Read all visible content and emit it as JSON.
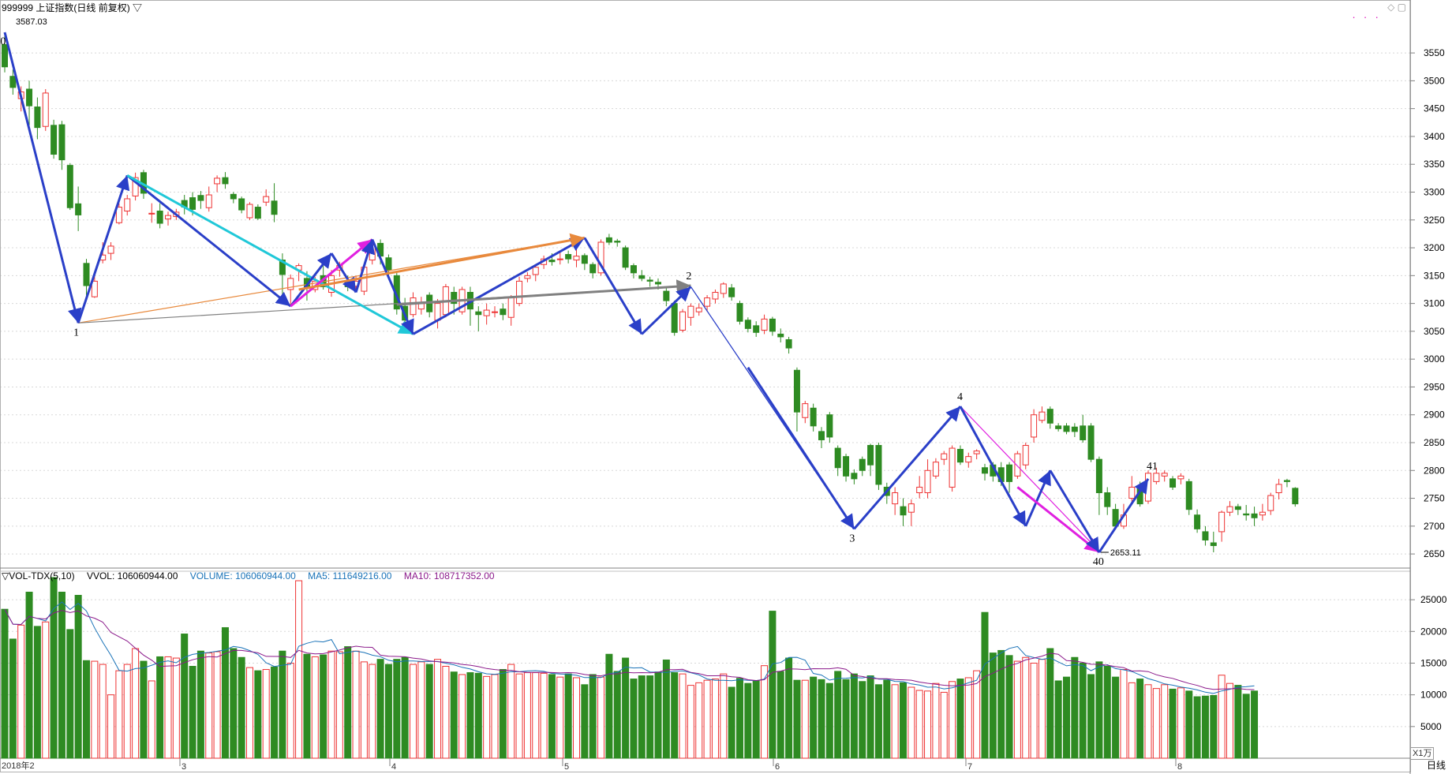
{
  "window": {
    "title": "999999 上证指数(日线 前复权) ▽",
    "icons": "◇ ▢",
    "dots": "· · ·",
    "period_label": "日线",
    "unit_label": "X1万",
    "start_label": "2018年2"
  },
  "chart_data": [
    {
      "type": "candlestick",
      "title": "999999 上证指数(日线 前复权)",
      "ylim": [
        2625,
        3590
      ],
      "yticks": [
        2650,
        2700,
        2750,
        2800,
        2850,
        2900,
        2950,
        3000,
        3050,
        3100,
        3150,
        3200,
        3250,
        3300,
        3350,
        3400,
        3450,
        3500,
        3550
      ],
      "month_labels": [
        "3",
        "4",
        "5",
        "6",
        "7",
        "8"
      ],
      "high_label": "3587.03",
      "low_label": "2653.11",
      "wave_labels": [
        "0",
        "1",
        "2",
        "3",
        "4",
        "40",
        "41"
      ],
      "candles": [
        [
          3565,
          3525,
          3587,
          3515
        ],
        [
          3508,
          3488,
          3520,
          3475
        ],
        [
          3468,
          3480,
          3490,
          3445
        ],
        [
          3485,
          3455,
          3500,
          3420
        ],
        [
          3453,
          3416,
          3470,
          3395
        ],
        [
          3418,
          3478,
          3485,
          3410
        ],
        [
          3420,
          3368,
          3430,
          3360
        ],
        [
          3421,
          3358,
          3428,
          3340
        ],
        [
          3348,
          3272,
          3352,
          3268
        ],
        [
          3279,
          3259,
          3310,
          3230
        ],
        [
          3172,
          3132,
          3180,
          3110
        ],
        [
          3112,
          3140,
          3150,
          3110
        ],
        [
          3178,
          3187,
          3210,
          3172
        ],
        [
          3190,
          3203,
          3210,
          3178
        ],
        [
          3245,
          3273,
          3280,
          3242
        ],
        [
          3266,
          3288,
          3295,
          3258
        ],
        [
          3293,
          3326,
          3335,
          3285
        ],
        [
          3335,
          3298,
          3340,
          3288
        ],
        [
          3261,
          3262,
          3280,
          3245
        ],
        [
          3266,
          3244,
          3280,
          3235
        ],
        [
          3252,
          3258,
          3265,
          3240
        ],
        [
          3256,
          3264,
          3270,
          3250
        ],
        [
          3285,
          3273,
          3295,
          3260
        ],
        [
          3290,
          3269,
          3300,
          3258
        ],
        [
          3294,
          3285,
          3302,
          3270
        ],
        [
          3272,
          3295,
          3310,
          3265
        ],
        [
          3315,
          3325,
          3330,
          3300
        ],
        [
          3326,
          3315,
          3336,
          3306
        ],
        [
          3296,
          3288,
          3300,
          3280
        ],
        [
          3288,
          3268,
          3292,
          3262
        ],
        [
          3254,
          3278,
          3282,
          3250
        ],
        [
          3273,
          3253,
          3278,
          3250
        ],
        [
          3282,
          3292,
          3305,
          3275
        ],
        [
          3284,
          3260,
          3316,
          3246
        ],
        [
          3178,
          3152,
          3190,
          3110
        ],
        [
          3125,
          3145,
          3152,
          3095
        ],
        [
          3160,
          3168,
          3172,
          3140
        ],
        [
          3145,
          3130,
          3158,
          3105
        ],
        [
          3125,
          3140,
          3148,
          3120
        ],
        [
          3150,
          3130,
          3175,
          3125
        ],
        [
          3120,
          3150,
          3160,
          3112
        ],
        [
          3160,
          3168,
          3175,
          3148
        ],
        [
          3140,
          3130,
          3150,
          3122
        ],
        [
          3131,
          3140,
          3150,
          3120
        ],
        [
          3122,
          3165,
          3172,
          3115
        ],
        [
          3178,
          3205,
          3212,
          3170
        ],
        [
          3208,
          3185,
          3215,
          3170
        ],
        [
          3182,
          3160,
          3188,
          3150
        ],
        [
          3150,
          3090,
          3155,
          3080
        ],
        [
          3095,
          3070,
          3110,
          3060
        ],
        [
          3080,
          3110,
          3120,
          3075
        ],
        [
          3090,
          3100,
          3112,
          3080
        ],
        [
          3115,
          3085,
          3120,
          3075
        ],
        [
          3070,
          3100,
          3108,
          3055
        ],
        [
          3080,
          3130,
          3135,
          3075
        ],
        [
          3120,
          3100,
          3130,
          3080
        ],
        [
          3085,
          3125,
          3130,
          3080
        ],
        [
          3120,
          3090,
          3130,
          3060
        ],
        [
          3085,
          3080,
          3095,
          3050
        ],
        [
          3078,
          3088,
          3100,
          3062
        ],
        [
          3085,
          3085,
          3095,
          3075
        ],
        [
          3090,
          3080,
          3100,
          3070
        ],
        [
          3075,
          3110,
          3115,
          3060
        ],
        [
          3100,
          3140,
          3148,
          3095
        ],
        [
          3145,
          3150,
          3156,
          3138
        ],
        [
          3152,
          3165,
          3170,
          3140
        ],
        [
          3170,
          3180,
          3186,
          3162
        ],
        [
          3178,
          3175,
          3190,
          3168
        ],
        [
          3180,
          3180,
          3192,
          3170
        ],
        [
          3188,
          3180,
          3195,
          3172
        ],
        [
          3178,
          3185,
          3200,
          3165
        ],
        [
          3186,
          3172,
          3190,
          3160
        ],
        [
          3170,
          3155,
          3174,
          3145
        ],
        [
          3155,
          3210,
          3215,
          3150
        ],
        [
          3218,
          3210,
          3225,
          3205
        ],
        [
          3212,
          3210,
          3216,
          3202
        ],
        [
          3200,
          3165,
          3204,
          3160
        ],
        [
          3168,
          3155,
          3172,
          3145
        ],
        [
          3150,
          3145,
          3160,
          3140
        ],
        [
          3142,
          3140,
          3148,
          3130
        ],
        [
          3138,
          3135,
          3145,
          3125
        ],
        [
          3122,
          3105,
          3128,
          3095
        ],
        [
          3100,
          3048,
          3105,
          3042
        ],
        [
          3052,
          3085,
          3090,
          3048
        ],
        [
          3075,
          3095,
          3100,
          3060
        ],
        [
          3085,
          3092,
          3100,
          3078
        ],
        [
          3095,
          3110,
          3115,
          3085
        ],
        [
          3108,
          3120,
          3125,
          3100
        ],
        [
          3118,
          3135,
          3138,
          3110
        ],
        [
          3128,
          3112,
          3135,
          3105
        ],
        [
          3100,
          3068,
          3105,
          3062
        ],
        [
          3070,
          3055,
          3075,
          3048
        ],
        [
          3060,
          3048,
          3068,
          3040
        ],
        [
          3052,
          3072,
          3080,
          3045
        ],
        [
          3072,
          3050,
          3076,
          3042
        ],
        [
          3045,
          3040,
          3055,
          3030
        ],
        [
          3035,
          3020,
          3040,
          3010
        ],
        [
          2980,
          2905,
          2985,
          2870
        ],
        [
          2895,
          2920,
          2925,
          2885
        ],
        [
          2912,
          2880,
          2920,
          2870
        ],
        [
          2870,
          2855,
          2878,
          2840
        ],
        [
          2900,
          2860,
          2905,
          2850
        ],
        [
          2840,
          2805,
          2845,
          2790
        ],
        [
          2825,
          2790,
          2830,
          2780
        ],
        [
          2795,
          2785,
          2802,
          2775
        ],
        [
          2820,
          2800,
          2825,
          2790
        ],
        [
          2845,
          2810,
          2848,
          2790
        ],
        [
          2845,
          2775,
          2850,
          2765
        ],
        [
          2770,
          2755,
          2778,
          2740
        ],
        [
          2740,
          2760,
          2770,
          2720
        ],
        [
          2735,
          2720,
          2750,
          2700
        ],
        [
          2725,
          2740,
          2748,
          2700
        ],
        [
          2760,
          2770,
          2790,
          2750
        ],
        [
          2760,
          2800,
          2820,
          2750
        ],
        [
          2790,
          2815,
          2822,
          2785
        ],
        [
          2820,
          2830,
          2835,
          2810
        ],
        [
          2770,
          2840,
          2845,
          2762
        ],
        [
          2838,
          2815,
          2845,
          2810
        ],
        [
          2815,
          2825,
          2832,
          2805
        ],
        [
          2830,
          2835,
          2838,
          2820
        ],
        [
          2805,
          2795,
          2812,
          2782
        ],
        [
          2810,
          2790,
          2815,
          2780
        ],
        [
          2805,
          2780,
          2815,
          2772
        ],
        [
          2810,
          2780,
          2815,
          2760
        ],
        [
          2790,
          2830,
          2835,
          2785
        ],
        [
          2810,
          2845,
          2850,
          2802
        ],
        [
          2860,
          2900,
          2910,
          2850
        ],
        [
          2890,
          2905,
          2915,
          2885
        ],
        [
          2910,
          2885,
          2915,
          2875
        ],
        [
          2880,
          2875,
          2885,
          2870
        ],
        [
          2880,
          2870,
          2885,
          2865
        ],
        [
          2878,
          2870,
          2885,
          2860
        ],
        [
          2880,
          2855,
          2900,
          2850
        ],
        [
          2880,
          2820,
          2885,
          2815
        ],
        [
          2820,
          2760,
          2825,
          2720
        ],
        [
          2760,
          2735,
          2770,
          2720
        ],
        [
          2730,
          2700,
          2740,
          2695
        ],
        [
          2700,
          2720,
          2740,
          2695
        ],
        [
          2750,
          2770,
          2790,
          2740
        ],
        [
          2770,
          2740,
          2780,
          2735
        ],
        [
          2745,
          2795,
          2800,
          2740
        ],
        [
          2780,
          2795,
          2805,
          2775
        ],
        [
          2790,
          2795,
          2800,
          2780
        ],
        [
          2785,
          2770,
          2790,
          2765
        ],
        [
          2785,
          2790,
          2795,
          2775
        ],
        [
          2780,
          2730,
          2785,
          2720
        ],
        [
          2720,
          2695,
          2730,
          2688
        ],
        [
          2690,
          2675,
          2700,
          2665
        ],
        [
          2670,
          2665,
          2690,
          2653
        ],
        [
          2690,
          2725,
          2728,
          2672
        ],
        [
          2725,
          2735,
          2745,
          2718
        ],
        [
          2735,
          2730,
          2740,
          2720
        ],
        [
          2722,
          2720,
          2738,
          2710
        ],
        [
          2722,
          2715,
          2735,
          2700
        ],
        [
          2720,
          2725,
          2740,
          2710
        ],
        [
          2728,
          2755,
          2760,
          2720
        ],
        [
          2760,
          2775,
          2785,
          2748
        ],
        [
          2782,
          2780,
          2785,
          2770
        ],
        [
          2768,
          2740,
          2770,
          2735
        ]
      ],
      "ma_lines": [
        {
          "name": "MA-cyan",
          "color": "#20c8d8"
        },
        {
          "name": "MA-orange",
          "color": "#e8893c"
        },
        {
          "name": "MA-gray",
          "color": "#808080"
        }
      ]
    },
    {
      "type": "bar",
      "title": "VOL-TDX(5,10)",
      "series": [
        {
          "name": "VVOL",
          "value_label": "106060944.00"
        },
        {
          "name": "VOLUME",
          "value_label": "106060944.00"
        },
        {
          "name": "MA5",
          "value_label": "111649216.00"
        },
        {
          "name": "MA10",
          "value_label": "108717352.00"
        }
      ],
      "ylim": [
        0,
        29000
      ],
      "yticks": [
        5000,
        10000,
        15000,
        20000,
        25000
      ],
      "values": [
        23500,
        18800,
        21000,
        26200,
        20800,
        21500,
        28500,
        26200,
        20300,
        25700,
        15400,
        15300,
        14800,
        10000,
        13800,
        14800,
        17300,
        15300,
        12200,
        16000,
        16000,
        15800,
        19600,
        14500,
        16900,
        16600,
        16800,
        20600,
        17300,
        15900,
        14300,
        13800,
        14000,
        14400,
        16900,
        15000,
        28000,
        16400,
        16000,
        16300,
        16900,
        16800,
        17600,
        16900,
        15200,
        14800,
        15600,
        14800,
        15600,
        15900,
        14800,
        15200,
        14800,
        15600,
        14500,
        13600,
        13200,
        13500,
        13400,
        12900,
        13200,
        14000,
        14800,
        13300,
        13500,
        13500,
        13400,
        13200,
        12800,
        13300,
        12700,
        11600,
        13200,
        12800,
        16400,
        13700,
        15800,
        12500,
        13000,
        13000,
        13600,
        15500,
        13500,
        13300,
        11500,
        11900,
        12300,
        12500,
        13300,
        11200,
        12600,
        11800,
        12200,
        14600,
        23200,
        13700,
        15800,
        12300,
        12300,
        12800,
        12400,
        11800,
        13700,
        12400,
        13300,
        12100,
        13000,
        11600,
        12300,
        11600,
        11900,
        11200,
        10700,
        10600,
        11800,
        10400,
        12100,
        12500,
        12700,
        13800,
        23000,
        16600,
        17000,
        16200,
        15300,
        15900,
        15000,
        15600,
        17300,
        12200,
        12800,
        15900,
        15000,
        13200,
        15200,
        14500,
        12800,
        14000,
        11900,
        12500,
        11600,
        11000,
        11600,
        10900,
        11100,
        10600,
        9700,
        9800,
        9900,
        13100,
        11800,
        11500,
        10100,
        10600
      ]
    }
  ]
}
